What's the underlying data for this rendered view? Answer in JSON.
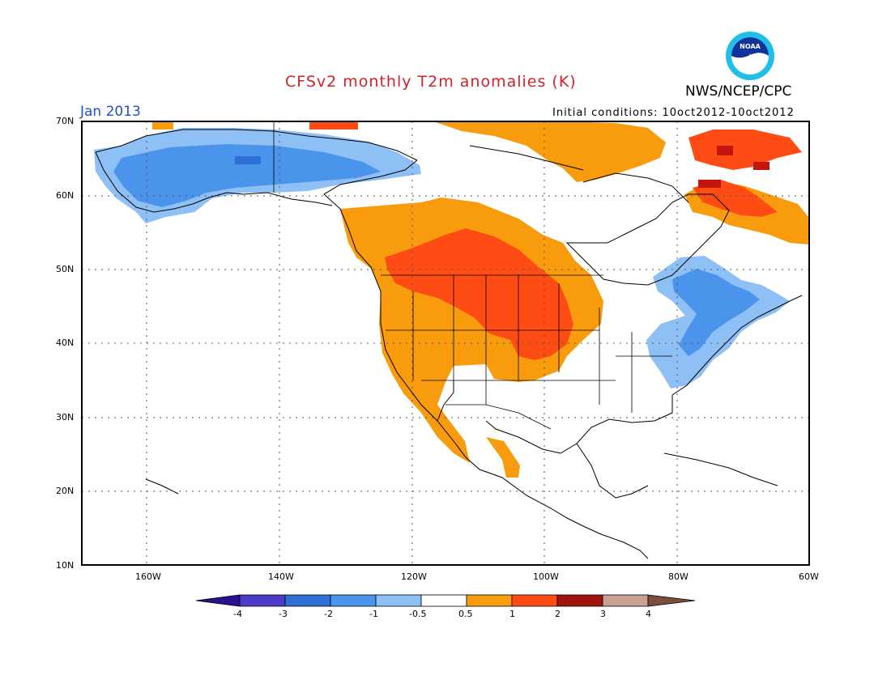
{
  "header": {
    "title": "CFSv2 monthly T2m anomalies (K)",
    "org": "NWS/NCEP/CPC",
    "month": "Jan 2013",
    "initial_conditions": "Initial conditions: 10oct2012-10oct2012",
    "logo_text": "NOAA"
  },
  "axes": {
    "lat_labels": [
      "70N",
      "60N",
      "50N",
      "40N",
      "30N",
      "20N",
      "10N"
    ],
    "lon_labels": [
      "160W",
      "140W",
      "120W",
      "100W",
      "80W",
      "60W"
    ]
  },
  "colorbar": {
    "labels": [
      "-4",
      "-3",
      "-2",
      "-1",
      "-0.5",
      "0.5",
      "1",
      "2",
      "3",
      "4"
    ],
    "colors": [
      "#2a0f8f",
      "#4b3dc9",
      "#2f6fd6",
      "#4a94ec",
      "#8ec0f5",
      "#ffffff",
      "#f89c0e",
      "#ff4c14",
      "#a0140e",
      "#c9a094",
      "#7b4e3f"
    ]
  },
  "palette": {
    "cold_strong": "#2f6fd6",
    "cold": "#4a94ec",
    "cold_light": "#8ec0f5",
    "warm": "#f89c0e",
    "warm_strong": "#ff4c14",
    "warm_very": "#c4160f"
  },
  "map": {
    "extent": {
      "lon_min": -170,
      "lon_max": -60,
      "lat_min": 10,
      "lat_max": 70
    }
  }
}
